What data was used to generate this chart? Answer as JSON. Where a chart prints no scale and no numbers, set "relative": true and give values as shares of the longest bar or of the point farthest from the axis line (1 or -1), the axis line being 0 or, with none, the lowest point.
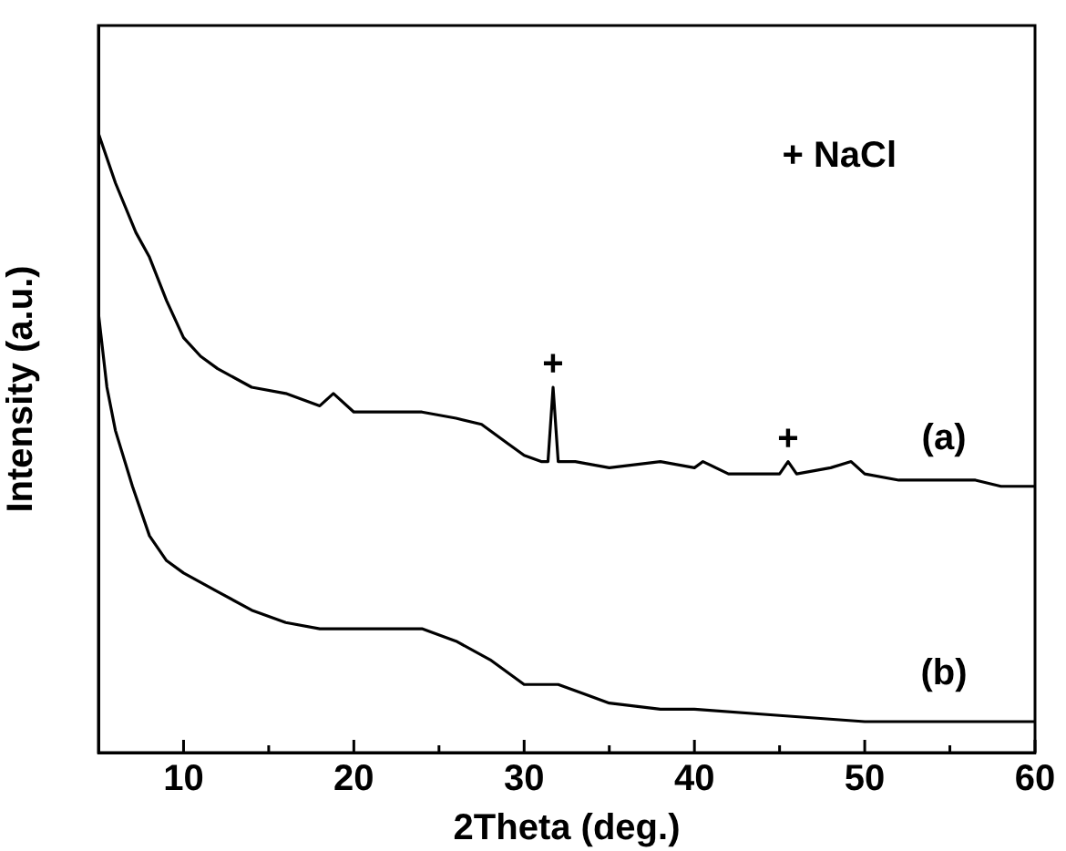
{
  "chart_data": {
    "type": "line",
    "xlabel": "2Theta (deg.)",
    "ylabel": "Intensity (a.u.)",
    "relative": true,
    "xlim": [
      5,
      60
    ],
    "xticks": [
      10,
      {
        "value": 15,
        "label": null
      },
      20,
      {
        "value": 25,
        "label": null
      },
      30,
      {
        "value": 35,
        "label": null
      },
      40,
      {
        "value": 45,
        "label": null
      },
      50,
      {
        "value": 55,
        "label": null
      },
      60
    ],
    "grid": false,
    "legend": false,
    "marker": "none",
    "line_style": "solid",
    "annotations": [
      "+ NaCl",
      {
        "text": "+",
        "x": 31.7,
        "y": 0.59
      },
      {
        "text": "+",
        "x": 45.5,
        "y": 0.47
      }
    ],
    "series": [
      {
        "name": "(a)",
        "color": "#000000",
        "x": [
          5,
          6,
          7.2,
          8,
          9,
          10,
          11,
          12,
          14,
          16,
          18,
          18.8,
          20,
          22,
          24,
          26,
          27.5,
          29,
          30,
          31,
          31.4,
          31.7,
          32,
          33,
          35,
          38,
          40,
          40.5,
          42,
          45,
          45.5,
          46,
          48,
          49.2,
          50,
          52,
          54,
          56.5,
          58,
          60
        ],
        "values": [
          1.0,
          0.92,
          0.84,
          0.8,
          0.73,
          0.67,
          0.64,
          0.62,
          0.59,
          0.58,
          0.56,
          0.58,
          0.55,
          0.55,
          0.55,
          0.54,
          0.53,
          0.5,
          0.48,
          0.47,
          0.47,
          0.59,
          0.47,
          0.47,
          0.46,
          0.47,
          0.46,
          0.47,
          0.45,
          0.45,
          0.47,
          0.45,
          0.46,
          0.47,
          0.45,
          0.44,
          0.44,
          0.44,
          0.43,
          0.43
        ]
      },
      {
        "name": "(b)",
        "color": "#000000",
        "x": [
          5,
          5.5,
          6,
          7,
          8,
          9,
          10,
          12,
          14,
          16,
          18,
          20,
          22,
          24,
          26,
          28,
          30,
          32,
          35,
          38,
          40,
          45,
          50,
          55,
          60
        ],
        "values": [
          0.71,
          0.59,
          0.52,
          0.43,
          0.35,
          0.31,
          0.29,
          0.26,
          0.23,
          0.21,
          0.2,
          0.2,
          0.2,
          0.2,
          0.18,
          0.15,
          0.11,
          0.11,
          0.08,
          0.07,
          0.07,
          0.06,
          0.05,
          0.05,
          0.05
        ]
      }
    ]
  }
}
